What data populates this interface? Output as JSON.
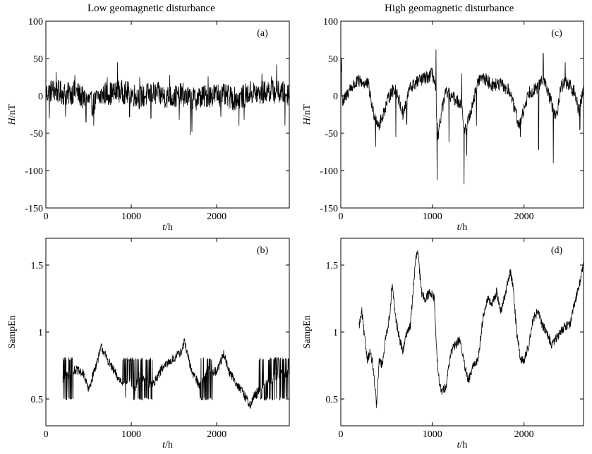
{
  "figure": {
    "left_title": "Low geomagnetic disturbance",
    "right_title": "High geomagnetic disturbance"
  },
  "chart_data": [
    {
      "id": "a",
      "type": "line",
      "panel_label": "(a)",
      "xlabel_italic": "t",
      "xlabel_unit": "/h",
      "ylabel_italic": "H",
      "ylabel_unit": "/nT",
      "xlim": [
        0,
        2850
      ],
      "ylim": [
        -150,
        100
      ],
      "xticks": [
        0,
        1000,
        2000
      ],
      "yticks": [
        -150,
        -100,
        -50,
        0,
        50,
        100
      ],
      "series": [
        {
          "x_range": [
            0,
            2850
          ],
          "points": [
            [
              0,
              3
            ],
            [
              80,
              8
            ],
            [
              150,
              5
            ],
            [
              250,
              2
            ],
            [
              350,
              6
            ],
            [
              450,
              -5
            ],
            [
              500,
              -6
            ],
            [
              550,
              -12
            ],
            [
              600,
              -4
            ],
            [
              700,
              4
            ],
            [
              800,
              3
            ],
            [
              850,
              6
            ],
            [
              900,
              5
            ],
            [
              1000,
              3
            ],
            [
              1100,
              -2
            ],
            [
              1200,
              2
            ],
            [
              1300,
              3
            ],
            [
              1400,
              -1
            ],
            [
              1500,
              -2
            ],
            [
              1600,
              2
            ],
            [
              1700,
              -5
            ],
            [
              1750,
              -4
            ],
            [
              1800,
              -2
            ],
            [
              1900,
              0
            ],
            [
              2000,
              2
            ],
            [
              2100,
              0
            ],
            [
              2200,
              -4
            ],
            [
              2300,
              -2
            ],
            [
              2400,
              5
            ],
            [
              2500,
              2
            ],
            [
              2600,
              7
            ],
            [
              2700,
              5
            ],
            [
              2850,
              3
            ]
          ],
          "spikes": [
            [
              40,
              -30
            ],
            [
              120,
              32
            ],
            [
              230,
              -28
            ],
            [
              340,
              28
            ],
            [
              470,
              -35
            ],
            [
              560,
              -40
            ],
            [
              720,
              25
            ],
            [
              840,
              45
            ],
            [
              980,
              -28
            ],
            [
              1100,
              25
            ],
            [
              1230,
              -30
            ],
            [
              1450,
              28
            ],
            [
              1560,
              -32
            ],
            [
              1690,
              -52
            ],
            [
              1710,
              -48
            ],
            [
              1900,
              26
            ],
            [
              2050,
              -28
            ],
            [
              2260,
              -40
            ],
            [
              2320,
              -32
            ],
            [
              2530,
              30
            ],
            [
              2640,
              26
            ],
            [
              2700,
              42
            ],
            [
              2800,
              -40
            ]
          ],
          "noise_amp": 16
        }
      ]
    },
    {
      "id": "b",
      "type": "line",
      "panel_label": "(b)",
      "xlabel_italic": "t",
      "xlabel_unit": "/h",
      "ylabel": "SampEn",
      "xlim": [
        0,
        2850
      ],
      "ylim": [
        0.3,
        1.7
      ],
      "xticks": [
        0,
        1000,
        2000
      ],
      "yticks": [
        0.5,
        1,
        1.5
      ],
      "ytick_labels": [
        "0.5",
        "1",
        "1.5"
      ],
      "series": [
        {
          "x_range": [
            200,
            2850
          ],
          "points": [
            [
              200,
              0.65
            ],
            [
              280,
              0.7
            ],
            [
              350,
              0.72
            ],
            [
              450,
              0.68
            ],
            [
              500,
              0.56
            ],
            [
              560,
              0.7
            ],
            [
              620,
              0.82
            ],
            [
              650,
              0.89
            ],
            [
              700,
              0.82
            ],
            [
              760,
              0.75
            ],
            [
              850,
              0.65
            ],
            [
              900,
              0.63
            ],
            [
              1000,
              0.62
            ],
            [
              1050,
              0.58
            ],
            [
              1100,
              0.7
            ],
            [
              1150,
              0.65
            ],
            [
              1250,
              0.6
            ],
            [
              1350,
              0.72
            ],
            [
              1450,
              0.78
            ],
            [
              1550,
              0.83
            ],
            [
              1600,
              0.87
            ],
            [
              1620,
              0.94
            ],
            [
              1650,
              0.85
            ],
            [
              1700,
              0.72
            ],
            [
              1800,
              0.6
            ],
            [
              1900,
              0.72
            ],
            [
              2000,
              0.7
            ],
            [
              2080,
              0.84
            ],
            [
              2150,
              0.7
            ],
            [
              2250,
              0.6
            ],
            [
              2350,
              0.5
            ],
            [
              2400,
              0.45
            ],
            [
              2450,
              0.55
            ],
            [
              2550,
              0.6
            ],
            [
              2650,
              0.65
            ],
            [
              2750,
              0.7
            ],
            [
              2850,
              0.68
            ]
          ],
          "toggle_bands": [
            [
              200,
              320
            ],
            [
              900,
              1250
            ],
            [
              1800,
              1950
            ],
            [
              2450,
              2850
            ]
          ],
          "toggle_low": 0.5,
          "toggle_high": 0.8,
          "noise_amp": 0.035
        }
      ]
    },
    {
      "id": "c",
      "type": "line",
      "panel_label": "(c)",
      "xlabel_italic": "t",
      "xlabel_unit": "/h",
      "ylabel_italic": "H",
      "ylabel_unit": "/nT",
      "xlim": [
        0,
        2650
      ],
      "ylim": [
        -150,
        100
      ],
      "xticks": [
        0,
        1000,
        2000
      ],
      "yticks": [
        -150,
        -100,
        -50,
        0,
        50,
        100
      ],
      "series": [
        {
          "x_range": [
            0,
            2650
          ],
          "points": [
            [
              0,
              45
            ],
            [
              20,
              -10
            ],
            [
              100,
              10
            ],
            [
              200,
              20
            ],
            [
              300,
              15
            ],
            [
              350,
              -20
            ],
            [
              420,
              -40
            ],
            [
              500,
              -10
            ],
            [
              550,
              5
            ],
            [
              600,
              10
            ],
            [
              680,
              -25
            ],
            [
              750,
              10
            ],
            [
              850,
              20
            ],
            [
              950,
              25
            ],
            [
              1000,
              30
            ],
            [
              1030,
              15
            ],
            [
              1060,
              -60
            ],
            [
              1100,
              -20
            ],
            [
              1150,
              5
            ],
            [
              1250,
              -5
            ],
            [
              1320,
              -10
            ],
            [
              1350,
              -50
            ],
            [
              1420,
              -20
            ],
            [
              1500,
              20
            ],
            [
              1550,
              25
            ],
            [
              1600,
              20
            ],
            [
              1650,
              15
            ],
            [
              1750,
              15
            ],
            [
              1850,
              5
            ],
            [
              1900,
              -20
            ],
            [
              1950,
              -40
            ],
            [
              2050,
              5
            ],
            [
              2150,
              10
            ],
            [
              2200,
              25
            ],
            [
              2250,
              10
            ],
            [
              2300,
              -10
            ],
            [
              2350,
              -30
            ],
            [
              2400,
              10
            ],
            [
              2450,
              20
            ],
            [
              2550,
              5
            ],
            [
              2600,
              -20
            ],
            [
              2650,
              10
            ]
          ],
          "spikes": [
            [
              10,
              50
            ],
            [
              380,
              -68
            ],
            [
              600,
              -55
            ],
            [
              720,
              -38
            ],
            [
              1040,
              62
            ],
            [
              1050,
              -113
            ],
            [
              1180,
              -62
            ],
            [
              1320,
              30
            ],
            [
              1345,
              -118
            ],
            [
              1375,
              -80
            ],
            [
              1480,
              -40
            ],
            [
              1960,
              -55
            ],
            [
              2160,
              -72
            ],
            [
              2210,
              57
            ],
            [
              2320,
              -90
            ],
            [
              2450,
              45
            ],
            [
              2610,
              -45
            ]
          ],
          "noise_amp": 9
        }
      ]
    },
    {
      "id": "d",
      "type": "line",
      "panel_label": "(d)",
      "xlabel_italic": "t",
      "xlabel_unit": "/h",
      "ylabel": "SampEn",
      "xlim": [
        0,
        2650
      ],
      "ylim": [
        0.3,
        1.7
      ],
      "xticks": [
        0,
        1000,
        2000
      ],
      "yticks": [
        0.5,
        1,
        1.5
      ],
      "ytick_labels": [
        "0.5",
        "1",
        "1.5"
      ],
      "series": [
        {
          "x_range": [
            200,
            2650
          ],
          "points": [
            [
              200,
              1.05
            ],
            [
              230,
              1.15
            ],
            [
              260,
              0.95
            ],
            [
              290,
              0.8
            ],
            [
              320,
              0.85
            ],
            [
              350,
              0.75
            ],
            [
              390,
              0.45
            ],
            [
              420,
              0.8
            ],
            [
              450,
              0.75
            ],
            [
              500,
              1.0
            ],
            [
              530,
              1.1
            ],
            [
              560,
              1.35
            ],
            [
              600,
              1.1
            ],
            [
              640,
              0.95
            ],
            [
              680,
              0.85
            ],
            [
              720,
              1.0
            ],
            [
              760,
              1.05
            ],
            [
              800,
              1.4
            ],
            [
              820,
              1.55
            ],
            [
              840,
              1.6
            ],
            [
              880,
              1.3
            ],
            [
              920,
              1.25
            ],
            [
              980,
              1.3
            ],
            [
              1020,
              1.25
            ],
            [
              1050,
              0.8
            ],
            [
              1080,
              0.6
            ],
            [
              1100,
              0.55
            ],
            [
              1150,
              0.6
            ],
            [
              1200,
              0.85
            ],
            [
              1250,
              0.9
            ],
            [
              1300,
              0.95
            ],
            [
              1350,
              0.75
            ],
            [
              1390,
              0.63
            ],
            [
              1450,
              0.75
            ],
            [
              1500,
              0.8
            ],
            [
              1550,
              1.1
            ],
            [
              1600,
              1.25
            ],
            [
              1650,
              1.2
            ],
            [
              1700,
              1.3
            ],
            [
              1750,
              1.15
            ],
            [
              1800,
              1.3
            ],
            [
              1850,
              1.45
            ],
            [
              1880,
              1.35
            ],
            [
              1920,
              1.0
            ],
            [
              1960,
              0.8
            ],
            [
              2000,
              0.78
            ],
            [
              2050,
              0.9
            ],
            [
              2100,
              1.1
            ],
            [
              2150,
              1.15
            ],
            [
              2200,
              1.05
            ],
            [
              2250,
              1.0
            ],
            [
              2300,
              0.9
            ],
            [
              2350,
              0.95
            ],
            [
              2400,
              1.0
            ],
            [
              2450,
              1.05
            ],
            [
              2500,
              1.05
            ],
            [
              2550,
              1.2
            ],
            [
              2600,
              1.35
            ],
            [
              2650,
              1.5
            ]
          ],
          "noise_amp": 0.035
        }
      ]
    }
  ]
}
